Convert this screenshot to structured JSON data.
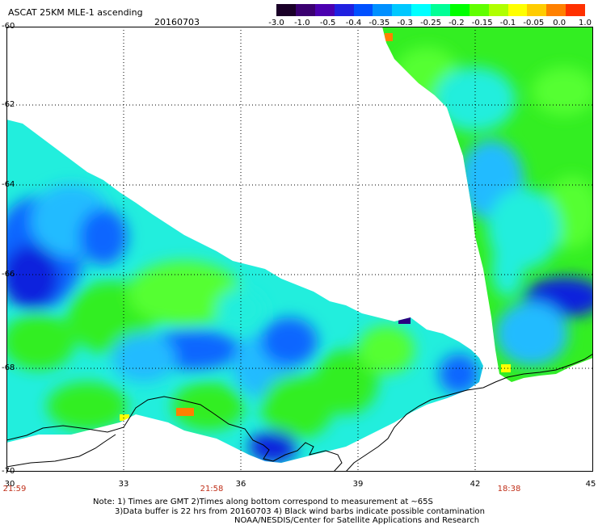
{
  "header": {
    "title": "ASCAT 25KM MLE-1 ascending",
    "date": "20160703"
  },
  "colorbar": {
    "labels": [
      "-3.0",
      "-1.0",
      "-0.5",
      "-0.4",
      "-0.35",
      "-0.3",
      "-0.25",
      "-0.2",
      "-0.15",
      "-0.1",
      "-0.05",
      "0.0",
      "1.0"
    ],
    "colors": [
      "#1a0028",
      "#3a0070",
      "#4b00b0",
      "#2020e0",
      "#0050ff",
      "#0090ff",
      "#00c8ff",
      "#00ffff",
      "#00ff96",
      "#00ff00",
      "#60ff00",
      "#b0ff00",
      "#ffff00",
      "#ffcc00",
      "#ff8000",
      "#ff3000"
    ]
  },
  "axes": {
    "y_labels": [
      "-60",
      "-62",
      "-64",
      "-66",
      "-68",
      "-70"
    ],
    "x_labels": [
      "30",
      "33",
      "36",
      "39",
      "42",
      "45"
    ],
    "time_labels": [
      "21:59",
      "21:58",
      "18:38"
    ]
  },
  "palette": {
    "green": "#33ee22",
    "green2": "#55ff33",
    "cyan": "#22eedd",
    "cyan2": "#00ffff",
    "lightblue": "#22bbff",
    "blue": "#1166ff",
    "deepblue": "#1122dd",
    "yellow": "#ffff00",
    "orange": "#ff8000"
  },
  "notes": {
    "line1": "Note: 1) Times are GMT 2)Times along bottom correspond to measurement at ~65S",
    "line2": "3)Data buffer is 22 hrs from 20160703 4) Black wind barbs indicate possible contamination",
    "line3": "NOAA/NESDIS/Center for Satellite Applications and Research"
  }
}
